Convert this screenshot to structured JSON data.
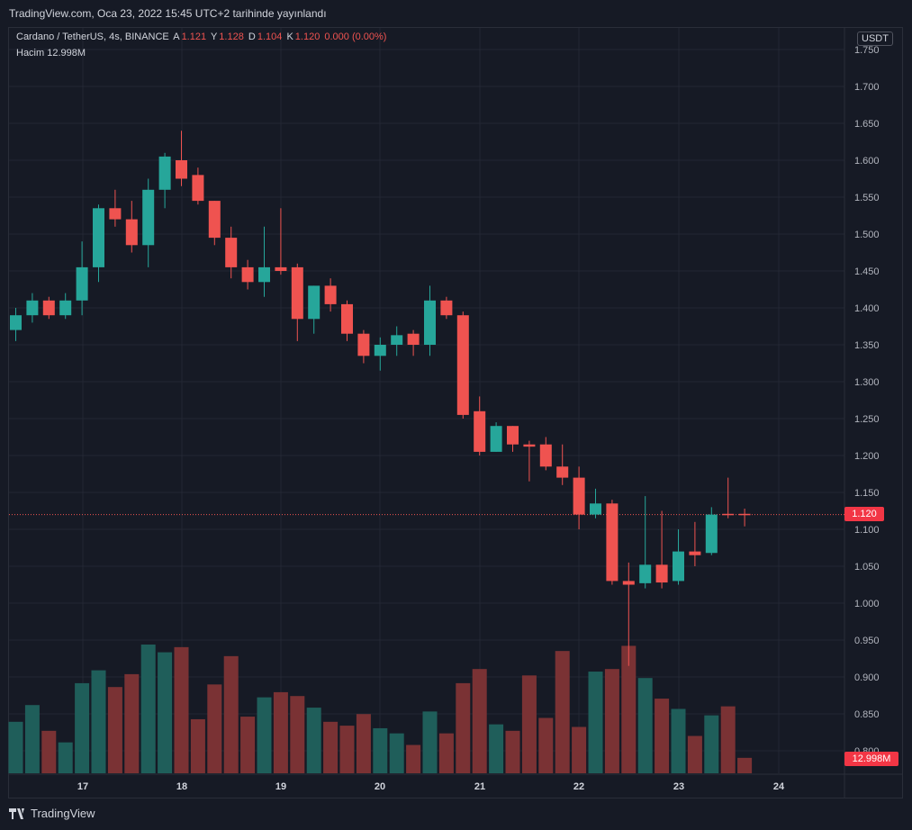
{
  "header": {
    "published": "TradingView.com, Oca 23, 2022 15:45 UTC+2 tarihinde yayınlandı"
  },
  "legend": {
    "symbol": "Cardano / TetherUS, 4s, BINANCE",
    "open_label": "A",
    "open_value": "1.121",
    "high_label": "Y",
    "high_value": "1.128",
    "low_label": "D",
    "low_value": "1.104",
    "close_label": "K",
    "close_value": "1.120",
    "change": "0.000 (0.00%)",
    "volume_label": "Hacim",
    "volume_value": "12.998M"
  },
  "currency": "USDT",
  "price_badge": "1.120",
  "volume_badge": "12.998M",
  "footer": {
    "brand": "TradingView"
  },
  "colors": {
    "up": "#26a69a",
    "down": "#ef5350",
    "vol_up": "#1f5e5a",
    "vol_down": "#7a3234",
    "grid": "#232733",
    "bg": "#161a25"
  },
  "chart_data": {
    "type": "candlestick",
    "x_tick_labels": [
      "17",
      "18",
      "19",
      "20",
      "21",
      "22",
      "23",
      "24"
    ],
    "y_tick_labels": [
      "0.800",
      "0.850",
      "0.900",
      "0.950",
      "1.000",
      "1.050",
      "1.100",
      "1.150",
      "1.200",
      "1.250",
      "1.300",
      "1.350",
      "1.400",
      "1.450",
      "1.500",
      "1.550",
      "1.600",
      "1.650",
      "1.700",
      "1.750"
    ],
    "ylim": [
      0.78,
      1.76
    ],
    "current_price": 1.12,
    "candles": [
      {
        "o": 1.37,
        "h": 1.4,
        "l": 1.355,
        "c": 1.39
      },
      {
        "o": 1.39,
        "h": 1.42,
        "l": 1.38,
        "c": 1.41
      },
      {
        "o": 1.41,
        "h": 1.415,
        "l": 1.385,
        "c": 1.39
      },
      {
        "o": 1.39,
        "h": 1.42,
        "l": 1.385,
        "c": 1.41
      },
      {
        "o": 1.41,
        "h": 1.49,
        "l": 1.39,
        "c": 1.455
      },
      {
        "o": 1.455,
        "h": 1.54,
        "l": 1.435,
        "c": 1.535
      },
      {
        "o": 1.535,
        "h": 1.56,
        "l": 1.51,
        "c": 1.52
      },
      {
        "o": 1.52,
        "h": 1.545,
        "l": 1.475,
        "c": 1.485
      },
      {
        "o": 1.485,
        "h": 1.575,
        "l": 1.455,
        "c": 1.56
      },
      {
        "o": 1.56,
        "h": 1.61,
        "l": 1.535,
        "c": 1.605
      },
      {
        "o": 1.6,
        "h": 1.64,
        "l": 1.565,
        "c": 1.575
      },
      {
        "o": 1.58,
        "h": 1.59,
        "l": 1.54,
        "c": 1.545
      },
      {
        "o": 1.545,
        "h": 1.545,
        "l": 1.485,
        "c": 1.495
      },
      {
        "o": 1.495,
        "h": 1.51,
        "l": 1.44,
        "c": 1.455
      },
      {
        "o": 1.455,
        "h": 1.465,
        "l": 1.425,
        "c": 1.435
      },
      {
        "o": 1.435,
        "h": 1.51,
        "l": 1.415,
        "c": 1.455
      },
      {
        "o": 1.455,
        "h": 1.535,
        "l": 1.445,
        "c": 1.45
      },
      {
        "o": 1.455,
        "h": 1.46,
        "l": 1.355,
        "c": 1.385
      },
      {
        "o": 1.385,
        "h": 1.43,
        "l": 1.365,
        "c": 1.43
      },
      {
        "o": 1.43,
        "h": 1.44,
        "l": 1.395,
        "c": 1.405
      },
      {
        "o": 1.405,
        "h": 1.41,
        "l": 1.355,
        "c": 1.365
      },
      {
        "o": 1.365,
        "h": 1.37,
        "l": 1.325,
        "c": 1.335
      },
      {
        "o": 1.335,
        "h": 1.36,
        "l": 1.315,
        "c": 1.35
      },
      {
        "o": 1.35,
        "h": 1.375,
        "l": 1.335,
        "c": 1.363
      },
      {
        "o": 1.365,
        "h": 1.37,
        "l": 1.335,
        "c": 1.35
      },
      {
        "o": 1.35,
        "h": 1.43,
        "l": 1.335,
        "c": 1.41
      },
      {
        "o": 1.41,
        "h": 1.415,
        "l": 1.385,
        "c": 1.39
      },
      {
        "o": 1.39,
        "h": 1.395,
        "l": 1.25,
        "c": 1.255
      },
      {
        "o": 1.26,
        "h": 1.28,
        "l": 1.2,
        "c": 1.205
      },
      {
        "o": 1.205,
        "h": 1.245,
        "l": 1.205,
        "c": 1.24
      },
      {
        "o": 1.24,
        "h": 1.24,
        "l": 1.205,
        "c": 1.215
      },
      {
        "o": 1.215,
        "h": 1.22,
        "l": 1.165,
        "c": 1.212
      },
      {
        "o": 1.215,
        "h": 1.225,
        "l": 1.18,
        "c": 1.185
      },
      {
        "o": 1.185,
        "h": 1.215,
        "l": 1.16,
        "c": 1.17
      },
      {
        "o": 1.17,
        "h": 1.185,
        "l": 1.1,
        "c": 1.12
      },
      {
        "o": 1.12,
        "h": 1.155,
        "l": 1.115,
        "c": 1.135
      },
      {
        "o": 1.135,
        "h": 1.14,
        "l": 1.025,
        "c": 1.03
      },
      {
        "o": 1.03,
        "h": 1.055,
        "l": 0.915,
        "c": 1.025
      },
      {
        "o": 1.027,
        "h": 1.145,
        "l": 1.02,
        "c": 1.052
      },
      {
        "o": 1.052,
        "h": 1.125,
        "l": 1.02,
        "c": 1.028
      },
      {
        "o": 1.03,
        "h": 1.1,
        "l": 1.025,
        "c": 1.07
      },
      {
        "o": 1.07,
        "h": 1.11,
        "l": 1.05,
        "c": 1.065
      },
      {
        "o": 1.068,
        "h": 1.13,
        "l": 1.065,
        "c": 1.12
      },
      {
        "o": 1.121,
        "h": 1.17,
        "l": 1.115,
        "c": 1.12
      },
      {
        "o": 1.121,
        "h": 1.128,
        "l": 1.104,
        "c": 1.12
      }
    ],
    "volumes_relative": [
      0.4,
      0.53,
      0.33,
      0.24,
      0.7,
      0.8,
      0.67,
      0.77,
      1.0,
      0.94,
      0.98,
      0.42,
      0.69,
      0.91,
      0.44,
      0.59,
      0.63,
      0.6,
      0.51,
      0.4,
      0.37,
      0.46,
      0.35,
      0.31,
      0.22,
      0.48,
      0.31,
      0.7,
      0.81,
      0.38,
      0.33,
      0.76,
      0.43,
      0.95,
      0.36,
      0.79,
      0.81,
      0.99,
      0.74,
      0.58,
      0.5,
      0.29,
      0.45,
      0.52,
      0.12
    ]
  }
}
